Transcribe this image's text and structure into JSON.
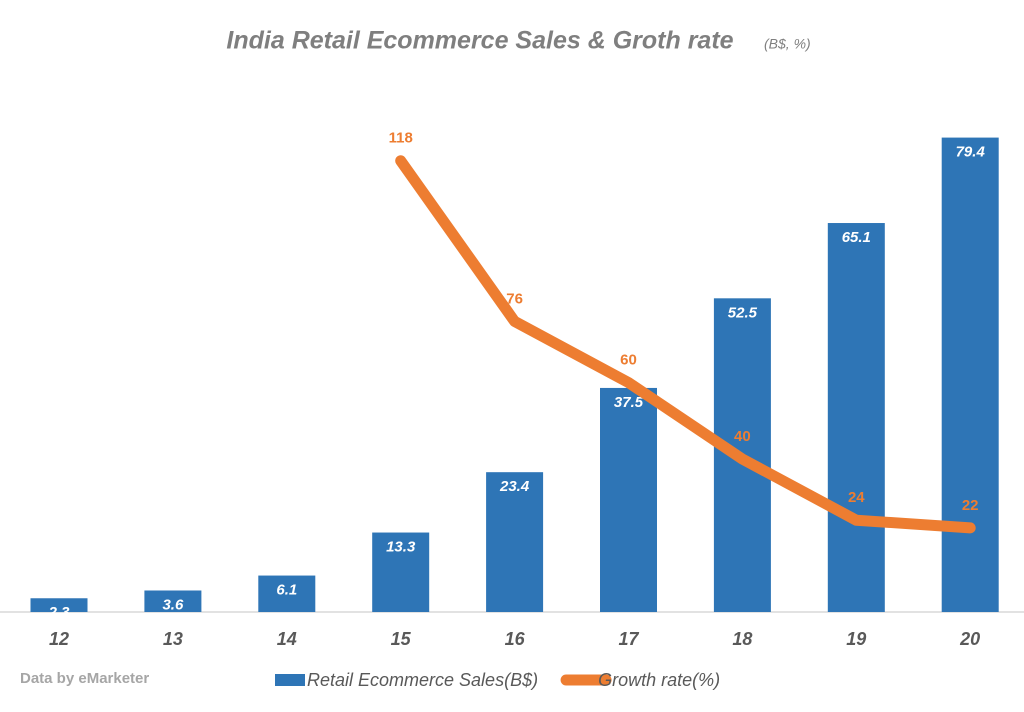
{
  "chart_data": {
    "type": "bar",
    "title": "India Retail Ecommerce Sales & Groth rate",
    "subtitle": "(B$, %)",
    "note": "Data by eMarketer",
    "categories": [
      "12",
      "13",
      "14",
      "15",
      "16",
      "17",
      "18",
      "19",
      "20"
    ],
    "series": [
      {
        "name": "Retail Ecommerce Sales(B$)",
        "type": "bar",
        "color": "#2e75b6",
        "values": [
          2.3,
          3.6,
          6.1,
          13.3,
          23.4,
          37.5,
          52.5,
          65.1,
          79.4
        ]
      },
      {
        "name": "Growth rate(%)",
        "type": "line",
        "axis": "y2",
        "color": "#ed7d31",
        "values": [
          null,
          null,
          null,
          118,
          76,
          60,
          40,
          24,
          22
        ]
      }
    ],
    "ylim": [
      0,
      80
    ],
    "y2lim": [
      0,
      125
    ],
    "legend": "bottom"
  }
}
